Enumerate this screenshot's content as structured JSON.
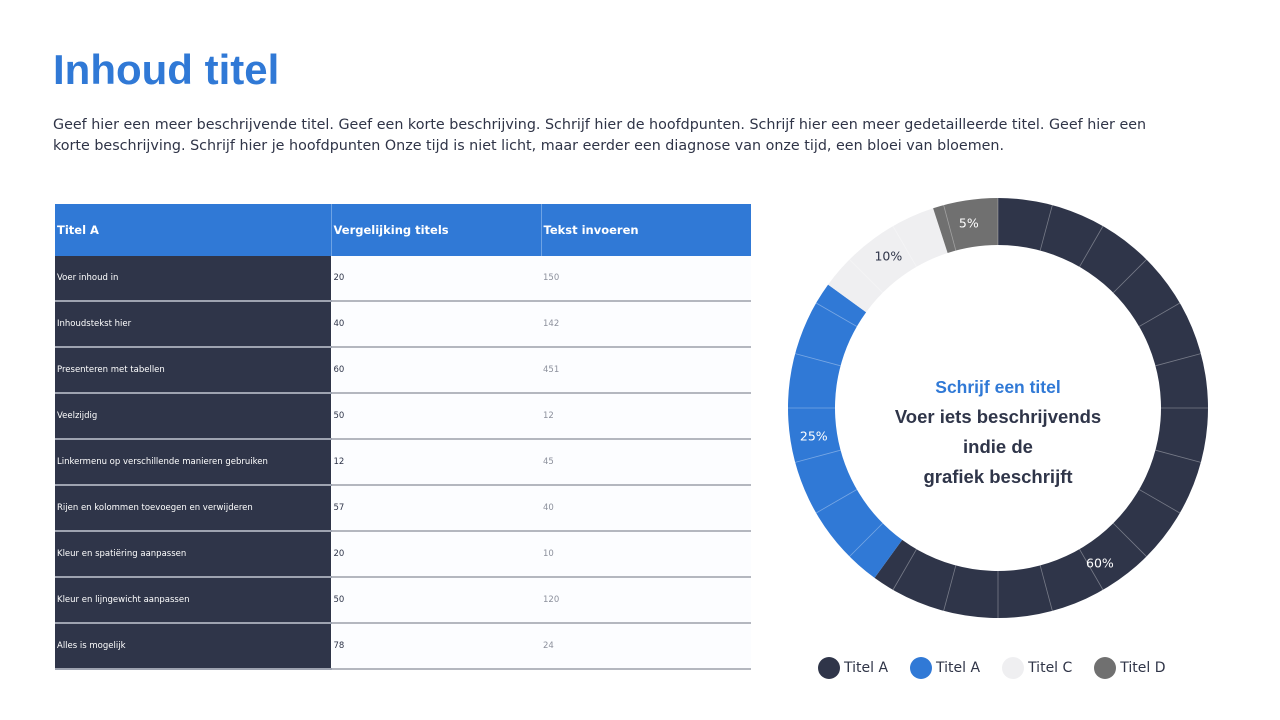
{
  "title": "Inhoud titel",
  "description": "Geef hier een meer beschrijvende titel. Geef een korte beschrijving. Schrijf hier de hoofdpunten. Schrijf hier een meer gedetailleerde titel. Geef hier een korte beschrijving. Schrijf hier je hoofdpunten Onze tijd is niet licht, maar eerder een diagnose van onze tijd, een bloei van bloemen.",
  "table": {
    "headers": [
      "Titel A",
      "Vergelijking titels",
      "Tekst invoeren"
    ],
    "rows": [
      {
        "label": "Voer inhoud in",
        "v1": "20",
        "v2": "150"
      },
      {
        "label": "Inhoudstekst hier",
        "v1": "40",
        "v2": "142"
      },
      {
        "label": "Presenteren met tabellen",
        "v1": "60",
        "v2": "451"
      },
      {
        "label": "Veelzijdig",
        "v1": "50",
        "v2": "12"
      },
      {
        "label": "Linkermenu op verschillende manieren gebruiken",
        "v1": "12",
        "v2": "45"
      },
      {
        "label": "Rijen en kolommen toevoegen en verwijderen",
        "v1": "57",
        "v2": "40"
      },
      {
        "label": "Kleur en spatiëring aanpassen",
        "v1": "20",
        "v2": "10"
      },
      {
        "label": "Kleur en lijngewicht aanpassen",
        "v1": "50",
        "v2": "120"
      },
      {
        "label": "Alles is mogelijk",
        "v1": "78",
        "v2": "24"
      }
    ]
  },
  "chart_data": {
    "type": "pie",
    "categories": [
      "Titel A",
      "Titel A",
      "Titel C",
      "Titel D"
    ],
    "values": [
      60,
      25,
      10,
      5
    ],
    "labels": [
      "60%",
      "25%",
      "10%",
      "5%"
    ],
    "colors": [
      "#2f3549",
      "#3079d6",
      "#efeff1",
      "#707070"
    ],
    "label_colors": [
      "#ffffff",
      "#ffffff",
      "#2f3549",
      "#ffffff"
    ],
    "center_title": "Schrijf een titel",
    "center_lines": [
      "Voer iets beschrijvends",
      "indie de",
      "grafiek beschrijft"
    ],
    "legend": "bottom"
  }
}
